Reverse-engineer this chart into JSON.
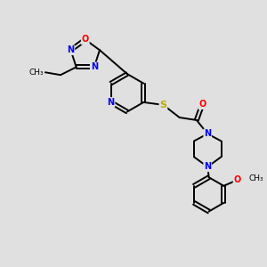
{
  "background_color": "#e0e0e0",
  "bond_color": "#000000",
  "atom_colors": {
    "N": "#0000ee",
    "O": "#ff0000",
    "S": "#bbaa00",
    "C": "#000000"
  },
  "figsize": [
    3.0,
    3.0
  ],
  "dpi": 100,
  "xlim": [
    0,
    10
  ],
  "ylim": [
    0,
    10
  ]
}
